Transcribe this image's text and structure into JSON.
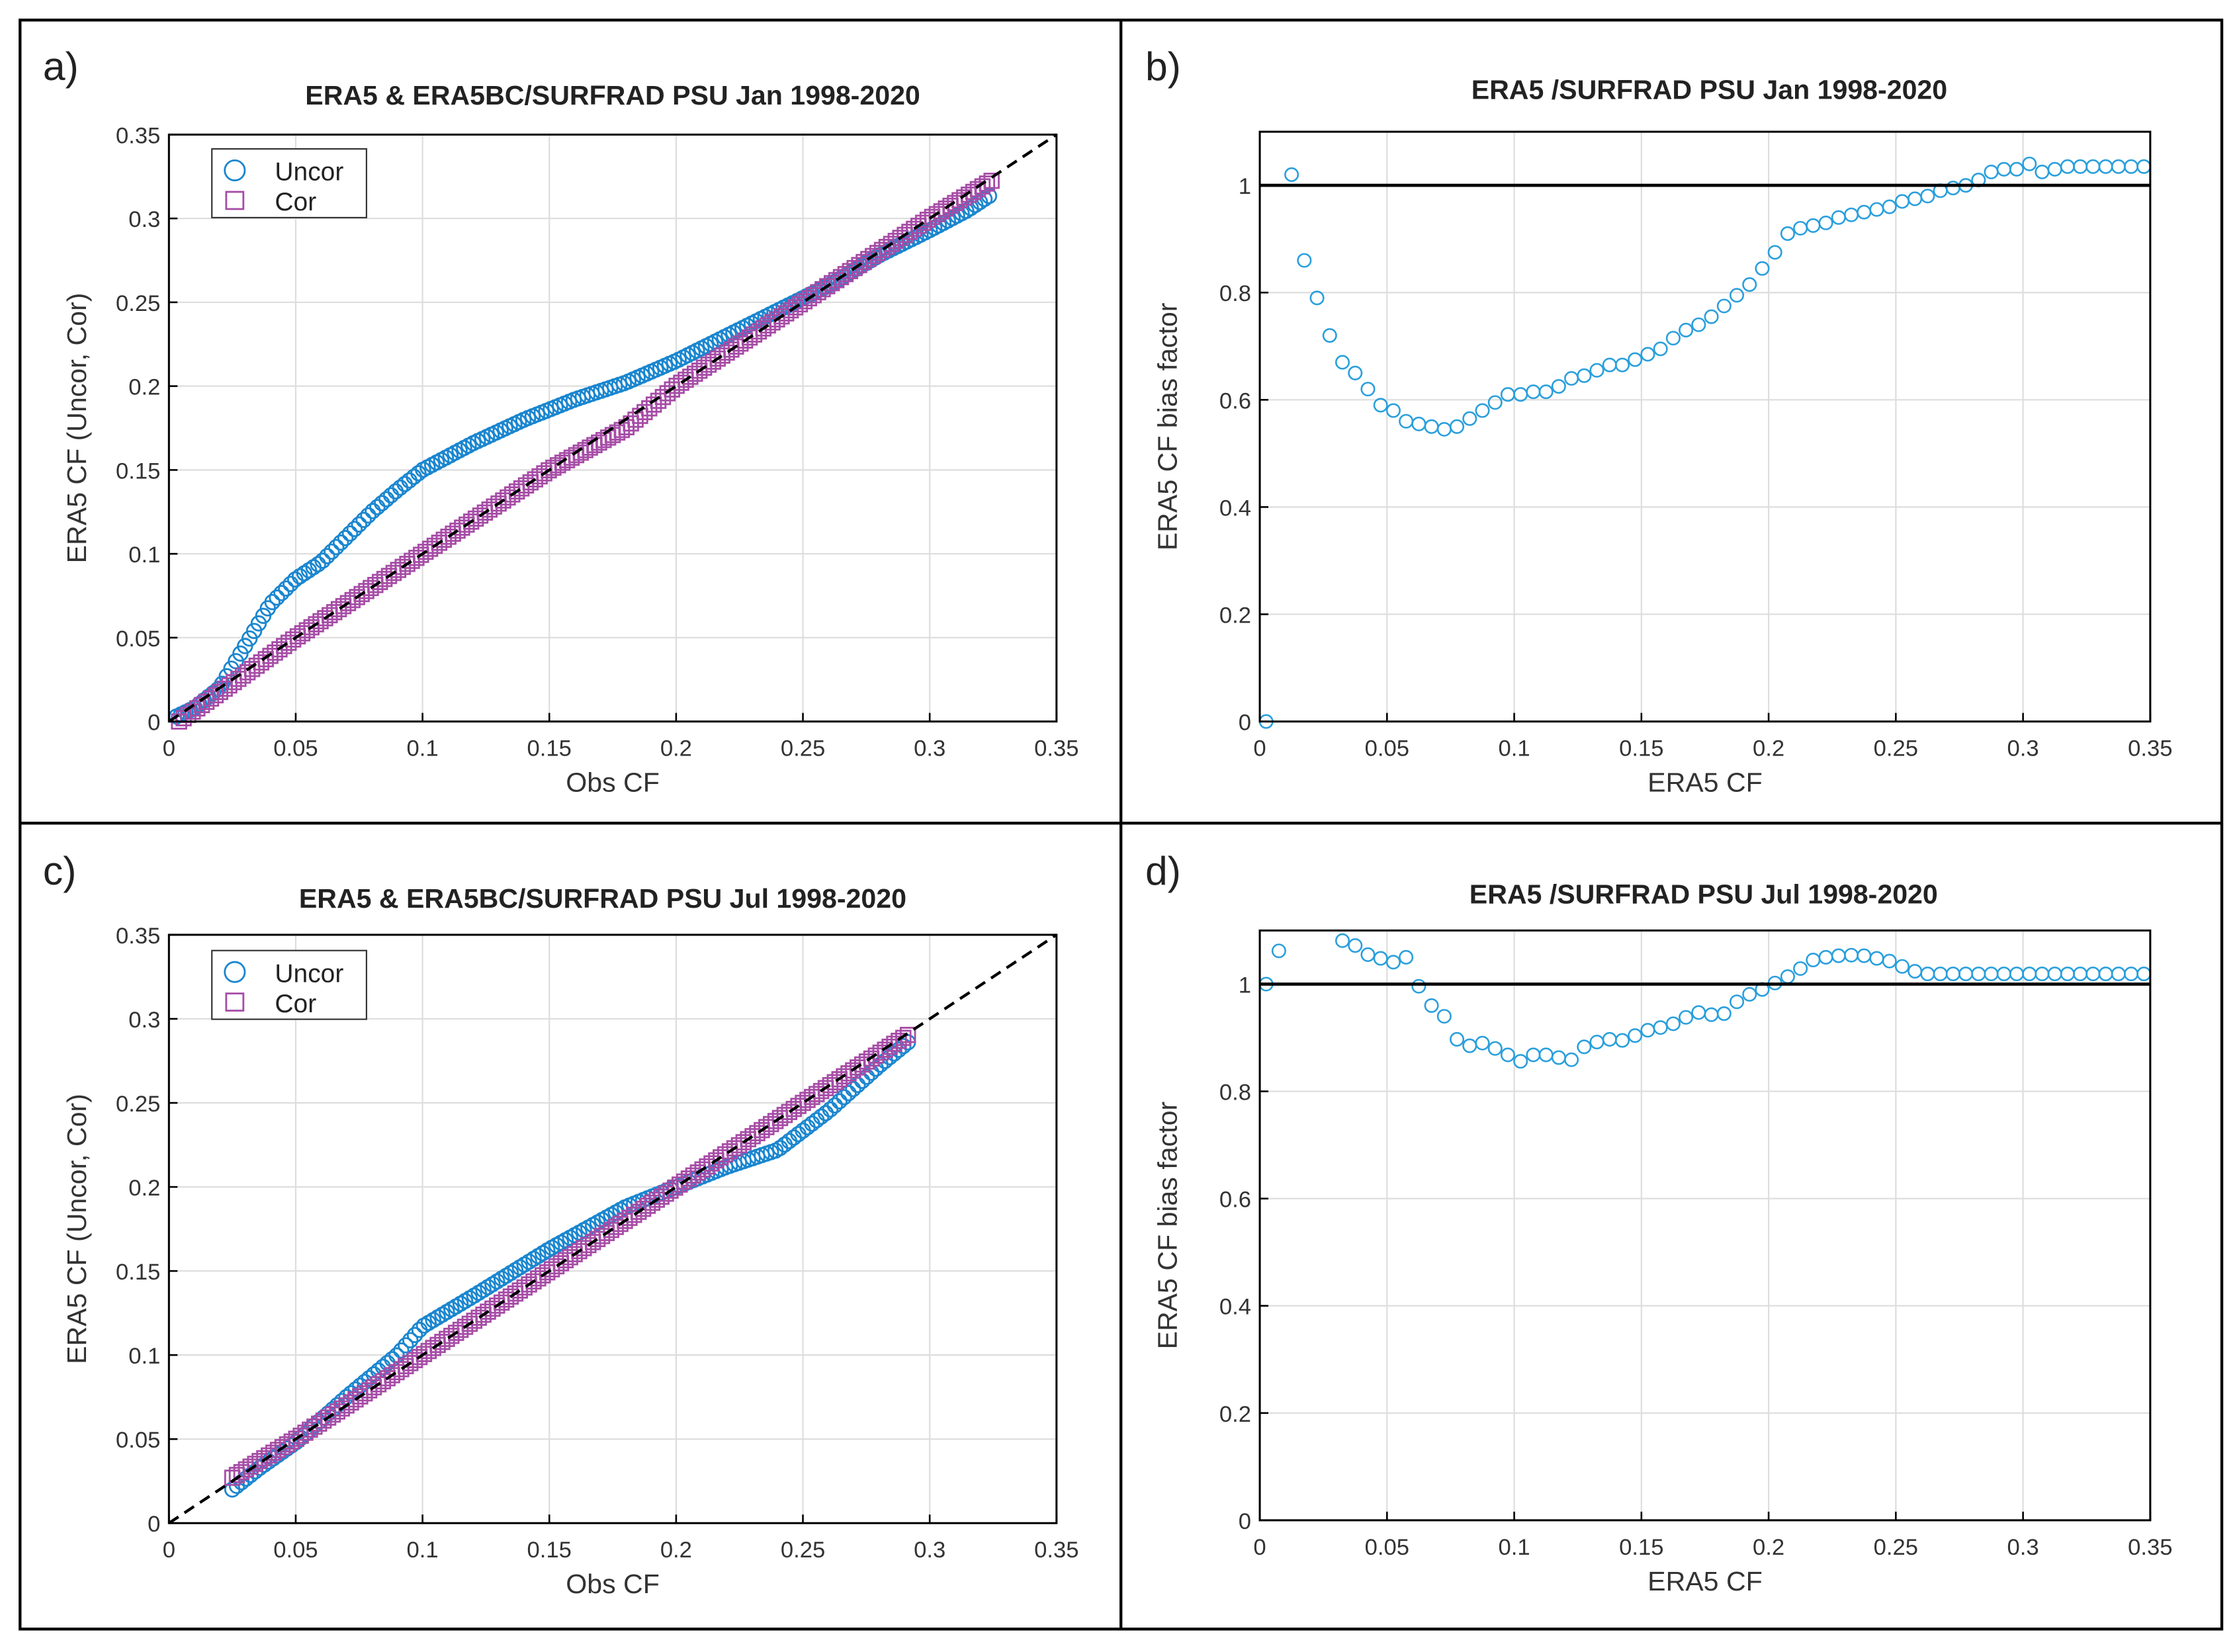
{
  "colors": {
    "uncor": "#1a86cf",
    "cor": "#a64ca6",
    "bias": "#2a9fdc",
    "ref": "#000000",
    "grid": "#dddddd"
  },
  "chart_data": [
    {
      "panel_label": "a)",
      "type": "scatter",
      "title": "ERA5 & ERA5BC/SURFRAD   PSU    Jan  1998-2020",
      "xlabel": "Obs CF",
      "ylabel": "ERA5 CF (Uncor, Cor)",
      "xlim": [
        0,
        0.35
      ],
      "ylim": [
        0,
        0.35
      ],
      "xticks": [
        "0",
        "0.05",
        "0.1",
        "0.15",
        "0.2",
        "0.25",
        "0.3",
        "0.35"
      ],
      "yticks": [
        "0",
        "0.05",
        "0.1",
        "0.15",
        "0.2",
        "0.25",
        "0.3",
        "0.35"
      ],
      "grid": true,
      "legend": {
        "placement": "top-left",
        "entries": [
          "Uncor",
          "Cor"
        ]
      },
      "reference_line": "1:1 dashed",
      "series": [
        {
          "name": "Uncor",
          "marker": "circle",
          "x": [
            0.003,
            0.01,
            0.02,
            0.03,
            0.04,
            0.05,
            0.06,
            0.07,
            0.08,
            0.09,
            0.1,
            0.12,
            0.14,
            0.16,
            0.18,
            0.2,
            0.22,
            0.24,
            0.26,
            0.28,
            0.3,
            0.315,
            0.325
          ],
          "y": [
            0.003,
            0.008,
            0.02,
            0.045,
            0.07,
            0.085,
            0.095,
            0.11,
            0.125,
            0.138,
            0.15,
            0.166,
            0.18,
            0.192,
            0.202,
            0.215,
            0.23,
            0.245,
            0.26,
            0.278,
            0.293,
            0.305,
            0.315
          ]
        },
        {
          "name": "Cor",
          "marker": "square",
          "x": [
            0.004,
            0.05,
            0.1,
            0.15,
            0.18,
            0.2,
            0.25,
            0.3,
            0.325
          ],
          "y": [
            0.0,
            0.05,
            0.1,
            0.15,
            0.175,
            0.2,
            0.25,
            0.3,
            0.323
          ]
        }
      ]
    },
    {
      "panel_label": "b)",
      "type": "scatter",
      "title": "ERA5 /SURFRAD  PSU   Jan  1998-2020",
      "xlabel": "ERA5 CF",
      "ylabel": "ERA5 CF bias factor",
      "xlim": [
        0,
        0.35
      ],
      "ylim": [
        0,
        1.1
      ],
      "xticks": [
        "0",
        "0.05",
        "0.1",
        "0.15",
        "0.2",
        "0.25",
        "0.3",
        "0.35"
      ],
      "yticks": [
        "0",
        "0.2",
        "0.4",
        "0.6",
        "0.8",
        "1"
      ],
      "grid": true,
      "reference_line": "y=1 solid",
      "series": [
        {
          "name": "bias factor",
          "marker": "circle",
          "x": [
            0.0025,
            0.0125,
            0.0175,
            0.0225,
            0.0275,
            0.0325,
            0.0375,
            0.0425,
            0.0475,
            0.0525,
            0.0575,
            0.0625,
            0.0675,
            0.0725,
            0.0775,
            0.0825,
            0.0875,
            0.0925,
            0.0975,
            0.1025,
            0.1075,
            0.1125,
            0.1175,
            0.1225,
            0.1275,
            0.1325,
            0.1375,
            0.1425,
            0.1475,
            0.1525,
            0.1575,
            0.1625,
            0.1675,
            0.1725,
            0.1775,
            0.1825,
            0.1875,
            0.1925,
            0.1975,
            0.2025,
            0.2075,
            0.2125,
            0.2175,
            0.2225,
            0.2275,
            0.2325,
            0.2375,
            0.2425,
            0.2475,
            0.2525,
            0.2575,
            0.2625,
            0.2675,
            0.2725,
            0.2775,
            0.2825,
            0.2875,
            0.2925,
            0.2975,
            0.3025,
            0.3075,
            0.3125,
            0.3175,
            0.3225,
            0.3275,
            0.3325,
            0.3375,
            0.3425,
            0.3475
          ],
          "y": [
            0.0,
            1.02,
            0.86,
            0.79,
            0.72,
            0.67,
            0.65,
            0.62,
            0.59,
            0.58,
            0.56,
            0.555,
            0.55,
            0.545,
            0.55,
            0.565,
            0.58,
            0.595,
            0.61,
            0.61,
            0.615,
            0.615,
            0.625,
            0.64,
            0.645,
            0.655,
            0.665,
            0.665,
            0.675,
            0.685,
            0.695,
            0.715,
            0.73,
            0.74,
            0.755,
            0.775,
            0.795,
            0.815,
            0.845,
            0.875,
            0.91,
            0.92,
            0.925,
            0.93,
            0.94,
            0.945,
            0.95,
            0.955,
            0.96,
            0.97,
            0.975,
            0.98,
            0.99,
            0.995,
            1.0,
            1.01,
            1.025,
            1.03,
            1.03,
            1.04,
            1.025,
            1.03,
            1.035,
            1.035,
            1.035,
            1.035,
            1.035,
            1.035,
            1.035
          ]
        }
      ]
    },
    {
      "panel_label": "c)",
      "type": "scatter",
      "title": "ERA5 & ERA5BC/SURFRAD   PSU    Jul  1998-2020",
      "xlabel": "Obs CF",
      "ylabel": "ERA5 CF (Uncor, Cor)",
      "xlim": [
        0,
        0.35
      ],
      "ylim": [
        0,
        0.35
      ],
      "xticks": [
        "0",
        "0.05",
        "0.1",
        "0.15",
        "0.2",
        "0.25",
        "0.3",
        "0.35"
      ],
      "yticks": [
        "0",
        "0.05",
        "0.1",
        "0.15",
        "0.2",
        "0.25",
        "0.3",
        "0.35"
      ],
      "grid": true,
      "legend": {
        "placement": "top-left",
        "entries": [
          "Uncor",
          "Cor"
        ]
      },
      "reference_line": "1:1 dashed",
      "series": [
        {
          "name": "Uncor",
          "marker": "circle",
          "x": [
            0.025,
            0.035,
            0.05,
            0.07,
            0.09,
            0.1,
            0.12,
            0.15,
            0.18,
            0.2,
            0.22,
            0.24,
            0.26,
            0.28,
            0.293
          ],
          "y": [
            0.02,
            0.032,
            0.048,
            0.075,
            0.1,
            0.117,
            0.135,
            0.163,
            0.188,
            0.2,
            0.212,
            0.222,
            0.245,
            0.272,
            0.288
          ]
        },
        {
          "name": "Cor",
          "marker": "square",
          "x": [
            0.025,
            0.05,
            0.1,
            0.15,
            0.2,
            0.25,
            0.293
          ],
          "y": [
            0.027,
            0.05,
            0.1,
            0.15,
            0.2,
            0.25,
            0.292
          ]
        }
      ]
    },
    {
      "panel_label": "d)",
      "type": "scatter",
      "title": "ERA5 /SURFRAD  PSU   Jul  1998-2020",
      "xlabel": "ERA5 CF",
      "ylabel": "ERA5 CF bias factor",
      "xlim": [
        0,
        0.35
      ],
      "ylim": [
        0,
        1.1
      ],
      "xticks": [
        "0",
        "0.05",
        "0.1",
        "0.15",
        "0.2",
        "0.25",
        "0.3",
        "0.35"
      ],
      "yticks": [
        "0",
        "0.2",
        "0.4",
        "0.6",
        "0.8",
        "1"
      ],
      "grid": true,
      "reference_line": "y=1 solid",
      "series": [
        {
          "name": "bias factor",
          "marker": "circle",
          "x": [
            0.0025,
            0.0075,
            0.0325,
            0.0375,
            0.0425,
            0.0475,
            0.0525,
            0.0575,
            0.0625,
            0.0675,
            0.0725,
            0.0775,
            0.0825,
            0.0875,
            0.0925,
            0.0975,
            0.1025,
            0.1075,
            0.1125,
            0.1175,
            0.1225,
            0.1275,
            0.1325,
            0.1375,
            0.1425,
            0.1475,
            0.1525,
            0.1575,
            0.1625,
            0.1675,
            0.1725,
            0.1775,
            0.1825,
            0.1875,
            0.1925,
            0.1975,
            0.2025,
            0.2075,
            0.2125,
            0.2175,
            0.2225,
            0.2275,
            0.2325,
            0.2375,
            0.2425,
            0.2475,
            0.2525,
            0.2575,
            0.2625,
            0.2675,
            0.2725,
            0.2775,
            0.2825,
            0.2875,
            0.2925,
            0.2975,
            0.3025,
            0.3075,
            0.3125,
            0.3175,
            0.3225,
            0.3275,
            0.3325,
            0.3375,
            0.3425,
            0.3475
          ],
          "y": [
            1.0,
            1.062,
            1.081,
            1.072,
            1.055,
            1.048,
            1.041,
            1.05,
            0.996,
            0.96,
            0.94,
            0.897,
            0.885,
            0.89,
            0.88,
            0.868,
            0.856,
            0.868,
            0.868,
            0.863,
            0.859,
            0.883,
            0.892,
            0.897,
            0.895,
            0.904,
            0.914,
            0.919,
            0.926,
            0.938,
            0.947,
            0.943,
            0.945,
            0.967,
            0.981,
            0.99,
            1.002,
            1.014,
            1.029,
            1.045,
            1.05,
            1.053,
            1.054,
            1.053,
            1.048,
            1.043,
            1.033,
            1.024,
            1.019,
            1.019,
            1.019,
            1.019,
            1.019,
            1.019,
            1.019,
            1.019,
            1.019,
            1.019,
            1.019,
            1.019,
            1.019,
            1.019,
            1.019,
            1.019,
            1.019,
            1.019
          ]
        }
      ]
    }
  ]
}
